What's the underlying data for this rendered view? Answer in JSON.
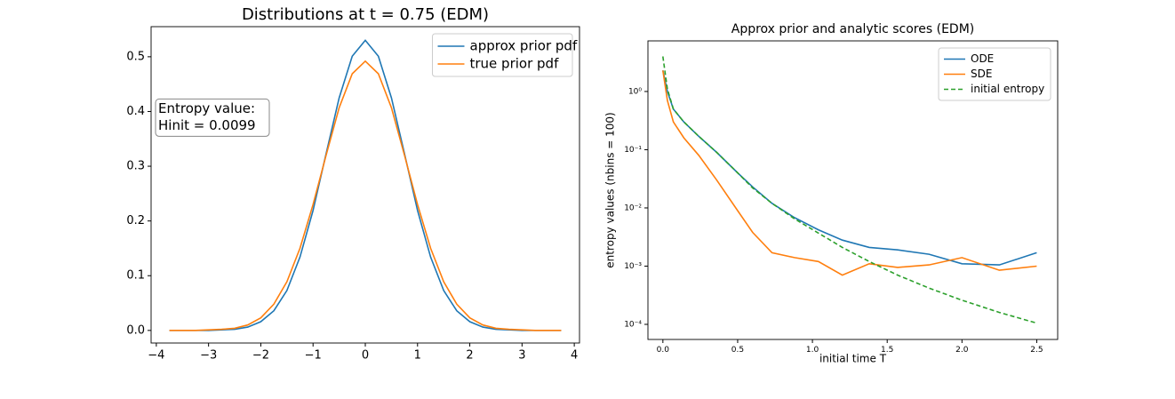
{
  "chart_data": [
    {
      "type": "line",
      "title": "Distributions at t = 0.75 (EDM)",
      "x": [
        -3.75,
        -3.5,
        -3.25,
        -3,
        -2.75,
        -2.5,
        -2.25,
        -2,
        -1.75,
        -1.5,
        -1.25,
        -1,
        -0.75,
        -0.5,
        -0.25,
        0,
        0.25,
        0.5,
        0.75,
        1,
        1.25,
        1.5,
        1.75,
        2,
        2.25,
        2.5,
        2.75,
        3,
        3.25,
        3.5,
        3.75
      ],
      "series": [
        {
          "name": "approx prior pdf",
          "color": "#1f77b4",
          "linestyle": "solid",
          "values": [
            0,
            0,
            0,
            0,
            0.001,
            0.002,
            0.006,
            0.016,
            0.036,
            0.073,
            0.134,
            0.219,
            0.323,
            0.425,
            0.501,
            0.53,
            0.501,
            0.425,
            0.323,
            0.219,
            0.134,
            0.073,
            0.036,
            0.016,
            0.006,
            0.002,
            0.001,
            0,
            0,
            0,
            0
          ]
        },
        {
          "name": "true prior pdf",
          "color": "#ff7f0e",
          "linestyle": "solid",
          "values": [
            0,
            0,
            0,
            0.001,
            0.002,
            0.004,
            0.01,
            0.023,
            0.048,
            0.089,
            0.15,
            0.23,
            0.32,
            0.407,
            0.469,
            0.492,
            0.469,
            0.407,
            0.32,
            0.23,
            0.15,
            0.089,
            0.048,
            0.023,
            0.01,
            0.004,
            0.002,
            0.001,
            0,
            0,
            0
          ]
        }
      ],
      "xlim": [
        -4.1,
        4.1
      ],
      "ylim": [
        -0.023,
        0.555
      ],
      "xticks": [
        {
          "value": -4,
          "label": "−4"
        },
        {
          "value": -3,
          "label": "−3"
        },
        {
          "value": -2,
          "label": "−2"
        },
        {
          "value": -1,
          "label": "−1"
        },
        0,
        1,
        2,
        3,
        4
      ],
      "yticks": [
        {
          "value": 0,
          "label": "0.0"
        },
        0.1,
        0.2,
        0.3,
        0.4,
        0.5
      ],
      "yscale": "linear",
      "legend": "upper right",
      "annotation": [
        "Entropy value:",
        "Hinit = 0.0099"
      ]
    },
    {
      "type": "line",
      "title": "Approx prior and analytic scores (EDM)",
      "x_label": "initial time T",
      "y_label": "entropy values (nbins = 100)",
      "x": [
        0,
        0.03,
        0.07,
        0.14,
        0.24,
        0.36,
        0.5,
        0.6,
        0.73,
        0.88,
        1.04,
        1.2,
        1.38,
        1.57,
        1.78,
        2.0,
        2.25,
        2.5
      ],
      "series": [
        {
          "name": "ODE",
          "color": "#1f77b4",
          "linestyle": "solid",
          "values": [
            2.3,
            1.0,
            0.5,
            0.3,
            0.17,
            0.09,
            0.04,
            0.023,
            0.012,
            0.0068,
            0.0042,
            0.0028,
            0.0021,
            0.0019,
            0.0016,
            0.0011,
            0.00105,
            0.0017
          ]
        },
        {
          "name": "SDE",
          "color": "#ff7f0e",
          "linestyle": "solid",
          "values": [
            2.3,
            0.7,
            0.3,
            0.16,
            0.08,
            0.03,
            0.009,
            0.0038,
            0.0017,
            0.0014,
            0.0012,
            0.0007,
            0.0011,
            0.00095,
            0.00105,
            0.0014,
            0.00085,
            0.001
          ]
        },
        {
          "name": "initial entropy",
          "color": "#2ca02c",
          "linestyle": "dashed",
          "values": [
            4.0,
            1.1,
            0.5,
            0.3,
            0.17,
            0.09,
            0.04,
            0.022,
            0.012,
            0.0065,
            0.0037,
            0.0021,
            0.0012,
            0.0007,
            0.00042,
            0.00026,
            0.00016,
            0.000105
          ]
        }
      ],
      "xlim": [
        -0.1,
        2.64
      ],
      "ylim": [
        5.5e-05,
        7.4
      ],
      "xticks": [
        {
          "value": 0,
          "label": "0.0"
        },
        0.5,
        {
          "value": 1,
          "label": "1.0"
        },
        1.5,
        {
          "value": 2,
          "label": "2.0"
        },
        2.5
      ],
      "yticks": [
        {
          "value": 0.0001,
          "label": "10⁻⁴"
        },
        {
          "value": 0.001,
          "label": "10⁻³"
        },
        {
          "value": 0.01,
          "label": "10⁻²"
        },
        {
          "value": 0.1,
          "label": "10⁻¹"
        },
        {
          "value": 1,
          "label": "10⁰"
        }
      ],
      "yscale": "log",
      "legend": "upper right"
    }
  ]
}
